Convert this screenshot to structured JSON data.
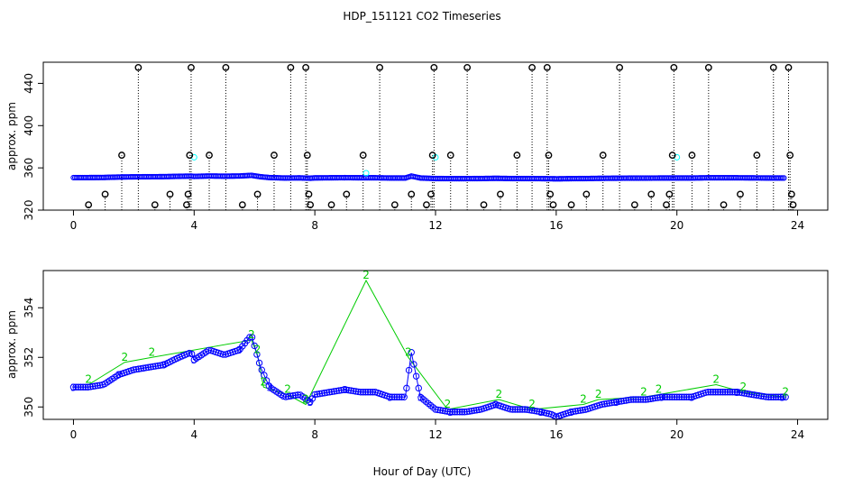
{
  "chart_data": [
    {
      "type": "scatter",
      "panel": "top",
      "title": "HDP_151121  CO2 Timeseries",
      "xlabel": "",
      "ylabel": "approx. ppm",
      "xlim": [
        -1,
        25
      ],
      "ylim": [
        320,
        460
      ],
      "xticks": [
        0,
        4,
        8,
        12,
        16,
        20,
        24
      ],
      "yticks": [
        320,
        360,
        400,
        440
      ],
      "colors": {
        "main": "#0000ff",
        "flag": "#00ffff",
        "outlier": "#000000",
        "spike": "#000000"
      },
      "baseline": {
        "x": [
          0,
          0.5,
          1,
          1.5,
          2,
          2.5,
          3,
          3.5,
          3.9,
          4.0,
          4.5,
          5,
          5.5,
          5.9,
          6.2,
          6.5,
          7,
          7.5,
          7.85,
          8.0,
          8.5,
          9,
          9.5,
          10,
          10.5,
          11,
          11.2,
          11.5,
          11.9,
          12.0,
          12.5,
          13,
          13.5,
          14,
          14.5,
          15,
          15.5,
          15.85,
          16.0,
          16.5,
          17,
          17.5,
          18,
          18.5,
          19,
          19.5,
          19.9,
          20.0,
          20.5,
          21,
          21.5,
          22,
          22.5,
          23,
          23.5
        ],
        "y": [
          350.8,
          350.8,
          350.9,
          351.3,
          351.5,
          351.6,
          351.7,
          352.0,
          352.2,
          351.9,
          352.3,
          352.1,
          352.3,
          352.9,
          351.6,
          350.8,
          350.4,
          350.5,
          350.2,
          350.5,
          350.6,
          350.7,
          350.6,
          350.6,
          350.4,
          350.4,
          352.2,
          350.4,
          350.0,
          349.9,
          349.8,
          349.8,
          349.9,
          350.1,
          349.9,
          349.9,
          349.8,
          349.7,
          349.6,
          349.8,
          349.9,
          350.1,
          350.2,
          350.3,
          350.3,
          350.4,
          350.4,
          350.4,
          350.4,
          350.6,
          350.6,
          350.6,
          350.5,
          350.4,
          350.4
        ]
      },
      "outliers": [
        {
          "x": 0.5,
          "y": 325
        },
        {
          "x": 1.05,
          "y": 335
        },
        {
          "x": 1.6,
          "y": 372
        },
        {
          "x": 2.15,
          "y": 455
        },
        {
          "x": 2.7,
          "y": 325
        },
        {
          "x": 3.2,
          "y": 335
        },
        {
          "x": 3.75,
          "y": 325
        },
        {
          "x": 3.8,
          "y": 335
        },
        {
          "x": 3.85,
          "y": 372
        },
        {
          "x": 3.9,
          "y": 455
        },
        {
          "x": 4.5,
          "y": 372
        },
        {
          "x": 5.05,
          "y": 455
        },
        {
          "x": 5.6,
          "y": 325
        },
        {
          "x": 6.1,
          "y": 335
        },
        {
          "x": 6.65,
          "y": 372
        },
        {
          "x": 7.2,
          "y": 455
        },
        {
          "x": 7.7,
          "y": 455
        },
        {
          "x": 7.75,
          "y": 372
        },
        {
          "x": 7.8,
          "y": 335
        },
        {
          "x": 7.85,
          "y": 325
        },
        {
          "x": 8.55,
          "y": 325
        },
        {
          "x": 9.05,
          "y": 335
        },
        {
          "x": 9.6,
          "y": 372
        },
        {
          "x": 10.15,
          "y": 455
        },
        {
          "x": 10.65,
          "y": 325
        },
        {
          "x": 11.2,
          "y": 335
        },
        {
          "x": 11.7,
          "y": 325
        },
        {
          "x": 11.85,
          "y": 335
        },
        {
          "x": 11.9,
          "y": 372
        },
        {
          "x": 11.95,
          "y": 455
        },
        {
          "x": 12.5,
          "y": 372
        },
        {
          "x": 13.05,
          "y": 455
        },
        {
          "x": 13.6,
          "y": 325
        },
        {
          "x": 14.15,
          "y": 335
        },
        {
          "x": 14.7,
          "y": 372
        },
        {
          "x": 15.2,
          "y": 455
        },
        {
          "x": 15.7,
          "y": 455
        },
        {
          "x": 15.75,
          "y": 372
        },
        {
          "x": 15.8,
          "y": 335
        },
        {
          "x": 15.9,
          "y": 325
        },
        {
          "x": 16.5,
          "y": 325
        },
        {
          "x": 17.0,
          "y": 335
        },
        {
          "x": 17.55,
          "y": 372
        },
        {
          "x": 18.1,
          "y": 455
        },
        {
          "x": 18.6,
          "y": 325
        },
        {
          "x": 19.15,
          "y": 335
        },
        {
          "x": 19.65,
          "y": 325
        },
        {
          "x": 19.75,
          "y": 335
        },
        {
          "x": 19.85,
          "y": 372
        },
        {
          "x": 19.9,
          "y": 455
        },
        {
          "x": 20.5,
          "y": 372
        },
        {
          "x": 21.05,
          "y": 455
        },
        {
          "x": 21.55,
          "y": 325
        },
        {
          "x": 22.1,
          "y": 335
        },
        {
          "x": 22.65,
          "y": 372
        },
        {
          "x": 23.2,
          "y": 455
        },
        {
          "x": 23.7,
          "y": 455
        },
        {
          "x": 23.75,
          "y": 372
        },
        {
          "x": 23.8,
          "y": 335
        },
        {
          "x": 23.85,
          "y": 325
        }
      ],
      "cyan_points": [
        {
          "x": 4.0,
          "y": 370
        },
        {
          "x": 9.7,
          "y": 355
        },
        {
          "x": 12.0,
          "y": 370
        },
        {
          "x": 20.0,
          "y": 370
        }
      ]
    },
    {
      "type": "scatter",
      "panel": "bottom",
      "title": "",
      "xlabel": "Hour of Day (UTC)",
      "ylabel": "approx. ppm",
      "xlim": [
        -1,
        25
      ],
      "ylim": [
        349.5,
        355.5
      ],
      "xticks": [
        0,
        4,
        8,
        12,
        16,
        20,
        24
      ],
      "yticks": [
        350,
        352,
        354
      ],
      "colors": {
        "series3": "#0000ff",
        "series2": "#00cc00"
      },
      "series": [
        {
          "name": "3",
          "x": [
            0,
            0.5,
            1,
            1.5,
            2,
            2.5,
            3,
            3.5,
            3.9,
            4.0,
            4.5,
            5,
            5.5,
            5.9,
            6.2,
            6.5,
            7,
            7.5,
            7.85,
            8.0,
            8.5,
            9,
            9.5,
            10,
            10.5,
            11,
            11.2,
            11.5,
            11.9,
            12.0,
            12.5,
            13,
            13.5,
            14,
            14.5,
            15,
            15.5,
            15.85,
            16.0,
            16.5,
            17,
            17.5,
            18,
            18.5,
            19,
            19.5,
            19.9,
            20.0,
            20.5,
            21,
            21.5,
            22,
            22.5,
            23,
            23.5
          ],
          "y": [
            350.8,
            350.8,
            350.9,
            351.3,
            351.5,
            351.6,
            351.7,
            352.0,
            352.2,
            351.9,
            352.3,
            352.1,
            352.3,
            352.9,
            351.6,
            350.8,
            350.4,
            350.5,
            350.2,
            350.5,
            350.6,
            350.7,
            350.6,
            350.6,
            350.4,
            350.4,
            352.2,
            350.4,
            350.0,
            349.9,
            349.8,
            349.8,
            349.9,
            350.1,
            349.9,
            349.9,
            349.8,
            349.7,
            349.6,
            349.8,
            349.9,
            350.1,
            350.2,
            350.3,
            350.3,
            350.4,
            350.4,
            350.4,
            350.4,
            350.6,
            350.6,
            350.6,
            350.5,
            350.4,
            350.4
          ]
        },
        {
          "name": "2",
          "x": [
            0.5,
            1.7,
            2.6,
            5.9,
            6.1,
            6.3,
            7.1,
            7.7,
            9.7,
            11.1,
            12.4,
            14.1,
            15.2,
            16.9,
            17.4,
            18.9,
            19.4,
            21.3,
            22.2,
            23.6
          ],
          "y": [
            350.9,
            351.8,
            352.0,
            352.7,
            352.1,
            350.8,
            350.5,
            350.1,
            355.1,
            352.0,
            349.9,
            350.3,
            349.9,
            350.1,
            350.3,
            350.4,
            350.5,
            350.9,
            350.6,
            350.4
          ]
        }
      ]
    }
  ]
}
